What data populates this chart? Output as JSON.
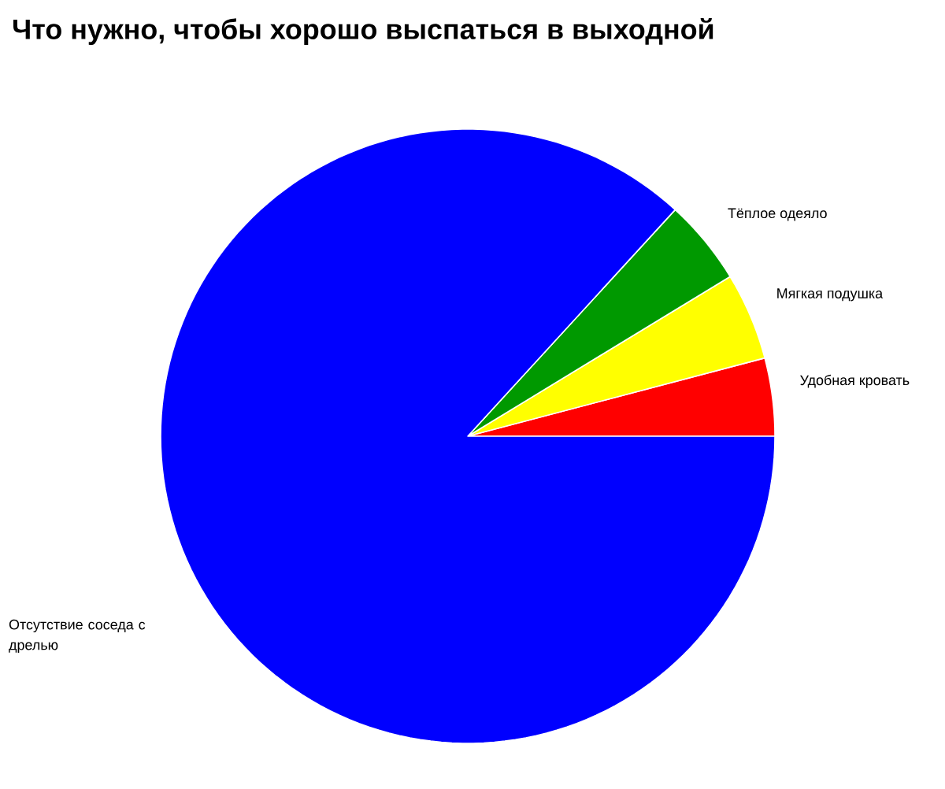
{
  "chart_data": {
    "type": "pie",
    "title": "Что нужно, чтобы хорошо выспаться в выходной",
    "categories": [
      "Удобная кровать",
      "Мягкая подушка",
      "Тёплое одеяло",
      "Отсутствие соседа с дрелью"
    ],
    "values": [
      4.1,
      4.6,
      4.5,
      86.8
    ],
    "colors": [
      "#ff0000",
      "#ffff00",
      "#009900",
      "#0000ff"
    ]
  }
}
